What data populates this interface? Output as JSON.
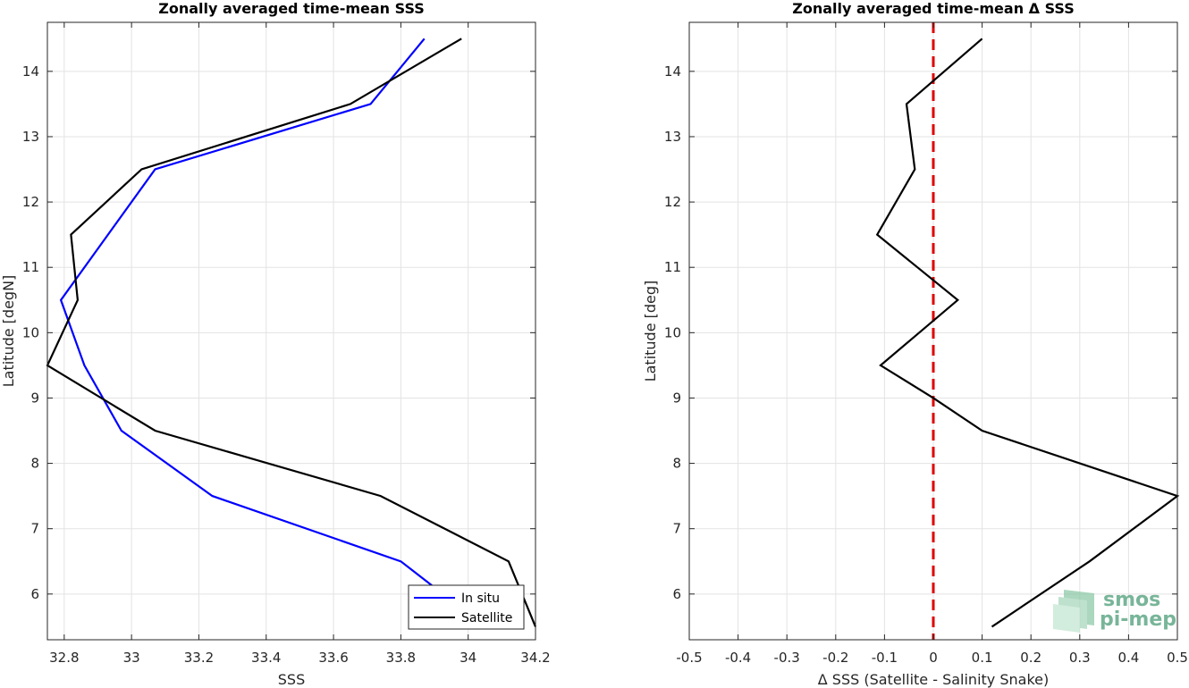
{
  "chart_data": [
    {
      "type": "line",
      "title": "Zonally averaged time-mean SSS",
      "xlabel": "SSS",
      "ylabel": "Latitude [degN]",
      "xlim": [
        32.75,
        34.2
      ],
      "ylim": [
        5.3,
        14.75
      ],
      "x_ticks": [
        "32.8",
        "33",
        "33.2",
        "33.4",
        "33.6",
        "33.8",
        "34",
        "34.2"
      ],
      "x_tick_values": [
        32.8,
        33.0,
        33.2,
        33.4,
        33.6,
        33.8,
        34.0,
        34.2
      ],
      "y_ticks": [
        "6",
        "7",
        "8",
        "9",
        "10",
        "11",
        "12",
        "13",
        "14"
      ],
      "y_tick_values": [
        6,
        7,
        8,
        9,
        10,
        11,
        12,
        13,
        14
      ],
      "grid": true,
      "legend_placement": "bottom-right",
      "series": [
        {
          "name": "In situ",
          "color": "#0000ff",
          "points": [
            [
              33.87,
              14.5
            ],
            [
              33.71,
              13.5
            ],
            [
              33.07,
              12.5
            ],
            [
              32.93,
              11.5
            ],
            [
              32.79,
              10.5
            ],
            [
              32.86,
              9.5
            ],
            [
              32.97,
              8.5
            ],
            [
              33.24,
              7.5
            ],
            [
              33.8,
              6.5
            ],
            [
              33.95,
              5.9
            ]
          ]
        },
        {
          "name": "Satellite",
          "color": "#000000",
          "points": [
            [
              33.98,
              14.5
            ],
            [
              33.65,
              13.5
            ],
            [
              33.03,
              12.5
            ],
            [
              32.82,
              11.5
            ],
            [
              32.84,
              10.5
            ],
            [
              32.75,
              9.5
            ],
            [
              33.07,
              8.5
            ],
            [
              33.74,
              7.5
            ],
            [
              34.12,
              6.5
            ],
            [
              34.2,
              5.5
            ]
          ]
        }
      ]
    },
    {
      "type": "line",
      "title": "Zonally averaged time-mean Δ SSS",
      "xlabel": "Δ SSS (Satellite - Salinity Snake)",
      "ylabel": "Latitude [deg]",
      "xlim": [
        -0.5,
        0.5
      ],
      "ylim": [
        5.3,
        14.75
      ],
      "x_ticks": [
        "-0.5",
        "-0.4",
        "-0.3",
        "-0.2",
        "-0.1",
        "0",
        "0.1",
        "0.2",
        "0.3",
        "0.4",
        "0.5"
      ],
      "x_tick_values": [
        -0.5,
        -0.4,
        -0.3,
        -0.2,
        -0.1,
        0,
        0.1,
        0.2,
        0.3,
        0.4,
        0.5
      ],
      "y_ticks": [
        "6",
        "7",
        "8",
        "9",
        "10",
        "11",
        "12",
        "13",
        "14"
      ],
      "y_tick_values": [
        6,
        7,
        8,
        9,
        10,
        11,
        12,
        13,
        14
      ],
      "grid": true,
      "reference_line": {
        "x": 0,
        "color": "#e00000",
        "style": "dashed"
      },
      "series": [
        {
          "color": "#000000",
          "points": [
            [
              0.1,
              14.5
            ],
            [
              -0.055,
              13.5
            ],
            [
              -0.038,
              12.5
            ],
            [
              -0.115,
              11.5
            ],
            [
              0.05,
              10.5
            ],
            [
              -0.108,
              9.5
            ],
            [
              0.0,
              9.0
            ],
            [
              0.1,
              8.5
            ],
            [
              0.5,
              7.5
            ],
            [
              0.32,
              6.5
            ],
            [
              0.12,
              5.5
            ]
          ]
        }
      ]
    }
  ],
  "logo": {
    "line1": "smos",
    "line2": "pi-mep",
    "color": "#6aae8e"
  }
}
